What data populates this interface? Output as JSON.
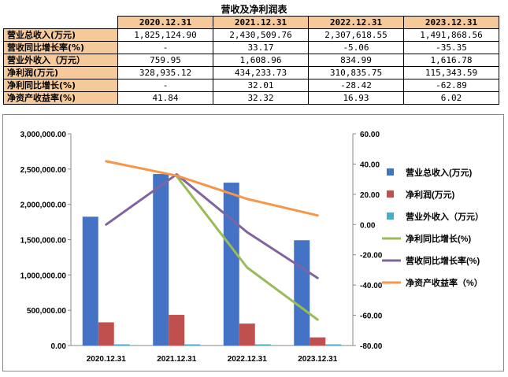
{
  "table": {
    "title": "营收及净利润表",
    "columns": [
      "2020.12.31",
      "2021.12.31",
      "2022.12.31",
      "2023.12.31"
    ],
    "rows": [
      {
        "label": "营业总收入(万元)",
        "values": [
          "1,825,124.90",
          "2,430,509.76",
          "2,307,618.55",
          "1,491,868.56"
        ]
      },
      {
        "label": "营收同比增长率(%)",
        "values": [
          "-",
          "33.17",
          "-5.06",
          "-35.35"
        ]
      },
      {
        "label": "营业外收入（万元）",
        "values": [
          "759.95",
          "1,608.96",
          "834.99",
          "1,616.78"
        ]
      },
      {
        "label": "净利润(万元)",
        "values": [
          "328,935.12",
          "434,233.73",
          "310,835.75",
          "115,343.59"
        ]
      },
      {
        "label": "净利同比增长(%)",
        "values": [
          "-",
          "32.01",
          "-28.42",
          "-62.89"
        ]
      },
      {
        "label": "净资产收益率(%)",
        "values": [
          "41.84",
          "32.32",
          "16.93",
          "6.02"
        ]
      }
    ]
  },
  "chart_data": {
    "type": "bar+line",
    "categories": [
      "2020.12.31",
      "2021.12.31",
      "2022.12.31",
      "2023.12.31"
    ],
    "left_axis": {
      "min": 0,
      "max": 3000000,
      "step": 500000,
      "tick_labels": [
        "0.00",
        "500,000.00",
        "1,000,000.00",
        "1,500,000.00",
        "2,000,000.00",
        "2,500,000.00",
        "3,000,000.00"
      ]
    },
    "right_axis": {
      "min": -80,
      "max": 60,
      "step": 20,
      "tick_labels": [
        "-80.00",
        "-60.00",
        "-40.00",
        "-20.00",
        "0.00",
        "20.00",
        "40.00",
        "60.00"
      ]
    },
    "bar_series": [
      {
        "name": "营业总收入(万元)",
        "color": "#4472c4",
        "values": [
          1825124.9,
          2430509.76,
          2307618.55,
          1491868.56
        ]
      },
      {
        "name": "净利润(万元)",
        "color": "#c0504d",
        "values": [
          328935.12,
          434233.73,
          310835.75,
          115343.59
        ]
      },
      {
        "name": "营业外收入（万元）",
        "color": "#4bacc6",
        "values": [
          759.95,
          1608.96,
          834.99,
          1616.78
        ]
      }
    ],
    "line_series": [
      {
        "name": "净利同比增长(%)",
        "color": "#9bbb59",
        "values": [
          null,
          32.01,
          -28.42,
          -62.89
        ]
      },
      {
        "name": "营收同比增长率(%)",
        "color": "#8064a2",
        "values": [
          0,
          33.17,
          -5.06,
          -35.35
        ]
      },
      {
        "name": "净资产收益率（%）",
        "color": "#f79646",
        "values": [
          41.84,
          32.32,
          16.93,
          6.02
        ]
      }
    ],
    "legend_position": "right"
  }
}
